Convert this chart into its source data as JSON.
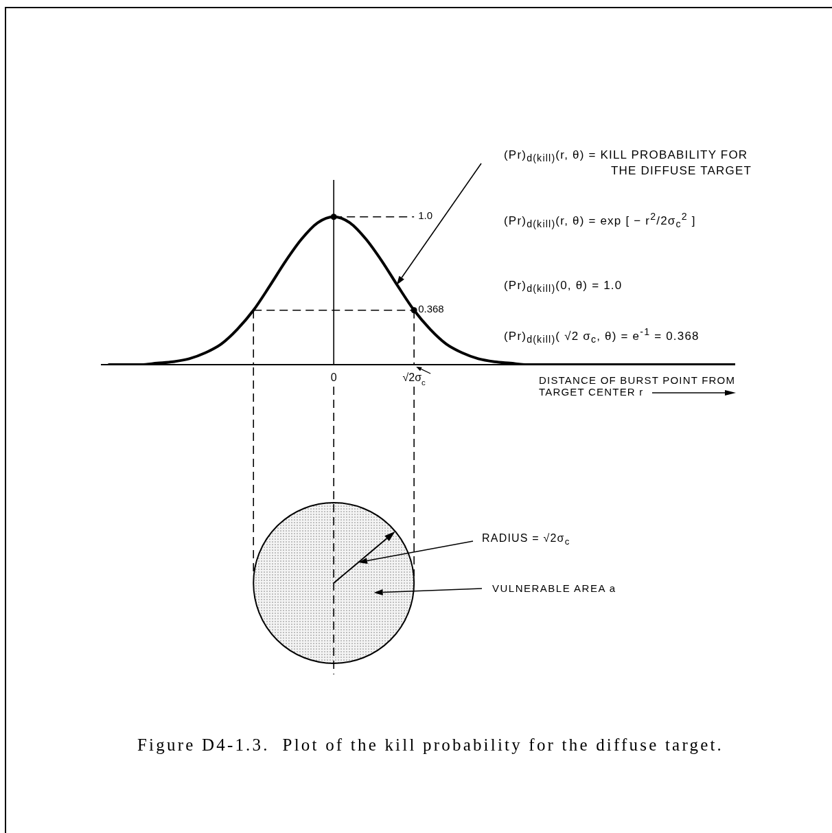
{
  "chart_data": {
    "type": "line",
    "xlabel": "DISTANCE OF BURST POINT FROM TARGET CENTER r",
    "categories": [
      null,
      null,
      null,
      null,
      null,
      null,
      null,
      null,
      null,
      null,
      null,
      null,
      null,
      null,
      "0",
      null,
      null,
      null,
      null,
      "√2σ$_{c}$",
      null,
      null,
      null,
      null,
      null,
      null,
      null,
      null,
      null,
      null,
      null,
      null,
      null,
      null,
      null,
      null,
      null,
      null,
      null,
      null
    ],
    "series": [
      {
        "color": "#000000",
        "values": [
          0,
          0,
          0,
          0.01,
          0.02,
          0.04,
          0.08,
          0.14,
          0.24,
          0.368,
          0.53,
          0.7,
          0.85,
          0.96,
          1.0,
          0.96,
          0.85,
          0.7,
          0.53,
          0.368,
          0.24,
          0.14,
          0.08,
          0.04,
          0.02,
          0.01,
          0,
          0,
          0,
          0,
          0,
          0,
          0,
          0,
          0,
          0,
          0,
          0,
          0,
          0
        ]
      },
      {
        "type": "scatter",
        "color": "#000000",
        "values": [
          null,
          null,
          null,
          null,
          null,
          null,
          null,
          null,
          null,
          null,
          null,
          null,
          null,
          null,
          1.0,
          null,
          null,
          null,
          null,
          0.368,
          null,
          null,
          null,
          null,
          null,
          null,
          null,
          null,
          null,
          null,
          null,
          null,
          null,
          null,
          null,
          null,
          null,
          null,
          null,
          null
        ],
        "marker": "circle"
      }
    ],
    "ylim": [
      0,
      1.25
    ],
    "tick_labels": "x",
    "ref_lines": [
      {
        "axis": "y",
        "value": 1.0,
        "label": "1.0",
        "line_style": "dashed"
      },
      {
        "axis": "y",
        "value": 0.368,
        "label": "0.368",
        "line_style": "dashed"
      }
    ],
    "annotations": [
      "(Pr)$_{d(kill)}$(r, θ) = KILL PROBABILITY FOR THE DIFFUSE TARGET",
      "(Pr)$_{d(kill)}$(r, θ) = exp [ − r$^{2}$/2σ$_{c}$$^{2}$ ]",
      "(Pr)$_{d(kill)}$(0, θ) = 1.0",
      "(Pr)$_{d(kill)}$( √2 σ$_{c}$, θ) = e$^{-1}$ = 0.368",
      "RADIUS = √2σ$_{c}$",
      "VULNERABLE AREA a",
      "Figure D4-1.3.  Plot of the kill probability for the diffuse target."
    ]
  }
}
